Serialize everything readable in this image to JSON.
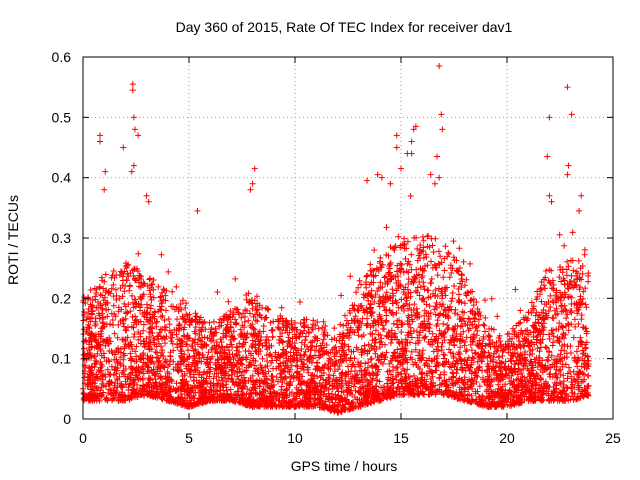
{
  "chart_data": {
    "type": "scatter",
    "title": "Day 360 of 2015, Rate Of TEC Index for receiver dav1",
    "xlabel": "GPS time / hours",
    "ylabel": "ROTI / TECUs",
    "xlim": [
      0,
      25
    ],
    "ylim": [
      0,
      0.6
    ],
    "x_ticks": [
      0,
      5,
      10,
      15,
      20,
      25
    ],
    "y_ticks": [
      0,
      0.1,
      0.2,
      0.3,
      0.4,
      0.5,
      0.6
    ],
    "x_tick_labels": [
      "0",
      "5",
      "10",
      "15",
      "20",
      "25"
    ],
    "y_tick_labels": [
      "0",
      "0.1",
      "0.2",
      "0.3",
      "0.4",
      "0.5",
      "0.6"
    ],
    "grid": true,
    "marker": "+",
    "color": "#ff0000",
    "series": [
      {
        "name": "ROTI",
        "density_envelope": {
          "hours": [
            0,
            1,
            2,
            3,
            4,
            5,
            6,
            7,
            8,
            9,
            10,
            11,
            12,
            13,
            14,
            15,
            16,
            17,
            18,
            19,
            20,
            21,
            22,
            23,
            24
          ],
          "typical_upper": [
            0.2,
            0.24,
            0.26,
            0.24,
            0.22,
            0.18,
            0.16,
            0.18,
            0.2,
            0.18,
            0.16,
            0.17,
            0.15,
            0.22,
            0.27,
            0.3,
            0.31,
            0.3,
            0.24,
            0.16,
            0.14,
            0.18,
            0.26,
            0.27,
            0.25
          ],
          "typical_lower": [
            0.03,
            0.03,
            0.03,
            0.04,
            0.03,
            0.02,
            0.03,
            0.03,
            0.02,
            0.02,
            0.02,
            0.02,
            0.01,
            0.02,
            0.03,
            0.04,
            0.04,
            0.04,
            0.03,
            0.02,
            0.02,
            0.03,
            0.03,
            0.03,
            0.04
          ]
        },
        "notable_points": [
          {
            "x": 0.8,
            "y": 0.47
          },
          {
            "x": 0.8,
            "y": 0.46
          },
          {
            "x": 1.05,
            "y": 0.41
          },
          {
            "x": 1.0,
            "y": 0.38
          },
          {
            "x": 1.9,
            "y": 0.45
          },
          {
            "x": 2.35,
            "y": 0.555
          },
          {
            "x": 2.35,
            "y": 0.545
          },
          {
            "x": 2.4,
            "y": 0.5
          },
          {
            "x": 2.45,
            "y": 0.48
          },
          {
            "x": 2.6,
            "y": 0.47
          },
          {
            "x": 2.4,
            "y": 0.42
          },
          {
            "x": 2.3,
            "y": 0.41
          },
          {
            "x": 3.0,
            "y": 0.37
          },
          {
            "x": 3.1,
            "y": 0.36
          },
          {
            "x": 5.4,
            "y": 0.345
          },
          {
            "x": 8.1,
            "y": 0.415
          },
          {
            "x": 8.0,
            "y": 0.39
          },
          {
            "x": 7.9,
            "y": 0.38
          },
          {
            "x": 13.4,
            "y": 0.395
          },
          {
            "x": 13.9,
            "y": 0.405
          },
          {
            "x": 14.1,
            "y": 0.4
          },
          {
            "x": 14.5,
            "y": 0.39
          },
          {
            "x": 14.8,
            "y": 0.47
          },
          {
            "x": 14.8,
            "y": 0.45
          },
          {
            "x": 15.0,
            "y": 0.415
          },
          {
            "x": 15.3,
            "y": 0.44
          },
          {
            "x": 15.5,
            "y": 0.44
          },
          {
            "x": 15.6,
            "y": 0.48
          },
          {
            "x": 15.7,
            "y": 0.485
          },
          {
            "x": 15.5,
            "y": 0.46
          },
          {
            "x": 16.8,
            "y": 0.585
          },
          {
            "x": 16.9,
            "y": 0.505
          },
          {
            "x": 16.95,
            "y": 0.48
          },
          {
            "x": 16.7,
            "y": 0.435
          },
          {
            "x": 16.4,
            "y": 0.405
          },
          {
            "x": 16.6,
            "y": 0.39
          },
          {
            "x": 16.8,
            "y": 0.4
          },
          {
            "x": 21.9,
            "y": 0.435
          },
          {
            "x": 22.0,
            "y": 0.5
          },
          {
            "x": 22.0,
            "y": 0.37
          },
          {
            "x": 22.1,
            "y": 0.36
          },
          {
            "x": 22.85,
            "y": 0.55
          },
          {
            "x": 23.05,
            "y": 0.505
          },
          {
            "x": 22.9,
            "y": 0.42
          },
          {
            "x": 22.85,
            "y": 0.405
          },
          {
            "x": 23.5,
            "y": 0.37
          },
          {
            "x": 23.4,
            "y": 0.345
          }
        ]
      }
    ]
  }
}
